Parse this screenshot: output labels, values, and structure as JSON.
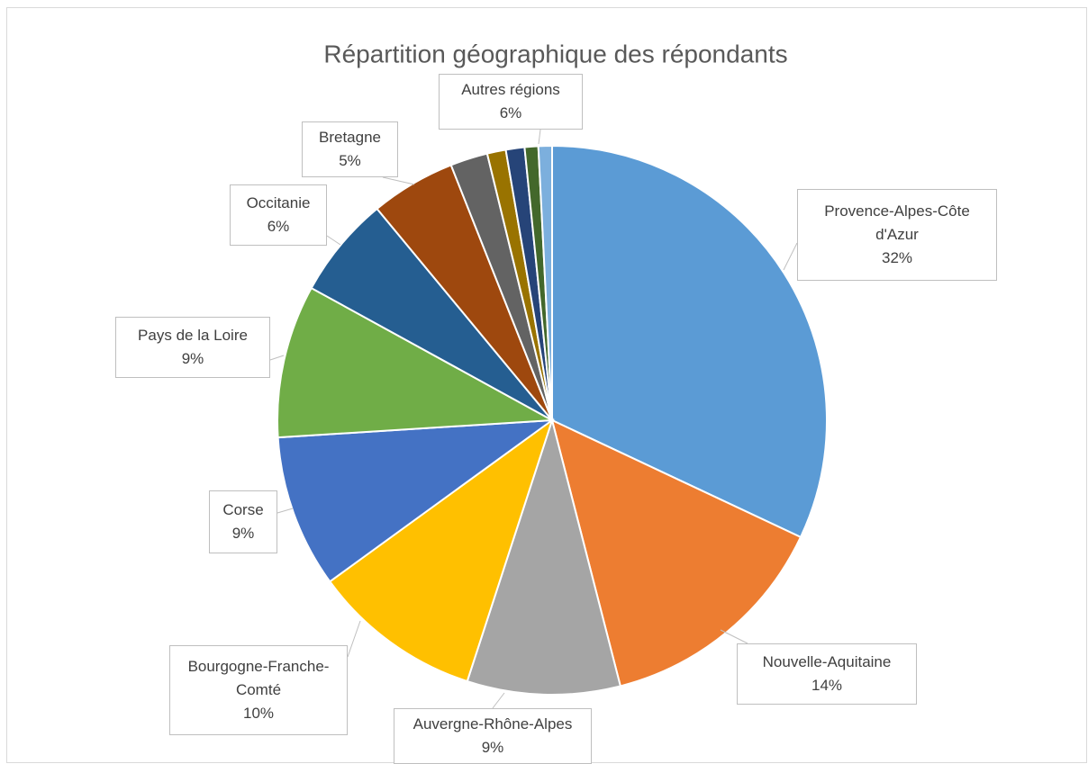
{
  "chart_data": {
    "type": "pie",
    "title": "Répartition géographique des répondants",
    "categories": [
      "Provence-Alpes-Côte d'Azur",
      "Nouvelle-Aquitaine",
      "Auvergne-Rhône-Alpes",
      "Bourgogne-Franche-Comté",
      "Corse",
      "Pays de la Loire",
      "Occitanie",
      "Bretagne",
      null,
      null,
      null,
      null,
      null
    ],
    "values": [
      32,
      14,
      9,
      10,
      9,
      9,
      6,
      5,
      2.2,
      1.1,
      1.1,
      0.8,
      0.8
    ],
    "value_labels": [
      "32%",
      "14%",
      "9%",
      "10%",
      "9%",
      "9%",
      "6%",
      "5%",
      null,
      null,
      null,
      null,
      null
    ],
    "colors": [
      "#5b9bd5",
      "#ed7d31",
      "#a5a5a5",
      "#ffc000",
      "#4472c4",
      "#70ad47",
      "#255e91",
      "#9e480e",
      "#636363",
      "#997300",
      "#264478",
      "#43682b",
      "#7cafdd"
    ],
    "annotations": [
      {
        "text": "Autres régions",
        "label": "6%"
      }
    ]
  }
}
